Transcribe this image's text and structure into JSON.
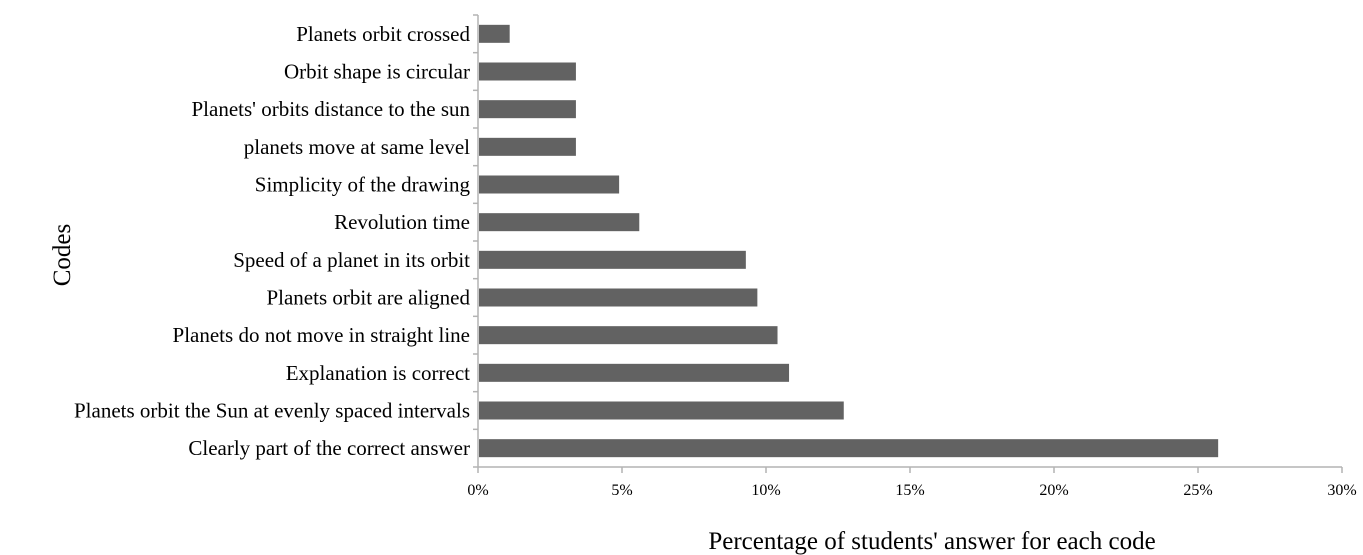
{
  "chart_data": {
    "type": "bar",
    "orientation": "horizontal",
    "categories": [
      "Planets orbit crossed",
      "Orbit shape is circular",
      "Planets' orbits distance to the sun",
      "planets move at same level",
      "Simplicity of the drawing",
      "Revolution time",
      "Speed of a planet in its orbit",
      "Planets orbit are aligned",
      "Planets do not move in straight line",
      "Explanation is correct",
      "Planets orbit the Sun at evenly spaced intervals",
      "Clearly part of the correct answer"
    ],
    "values": [
      1.1,
      3.4,
      3.4,
      3.4,
      4.9,
      5.6,
      9.3,
      9.7,
      10.4,
      10.8,
      12.7,
      25.7
    ],
    "xlabel": "Percentage of students' answer for each code",
    "ylabel": "Codes",
    "xlim": [
      0,
      30
    ],
    "xticks": [
      "0%",
      "5%",
      "10%",
      "15%",
      "20%",
      "25%",
      "30%"
    ],
    "grid": false,
    "legend": "none",
    "bar_color": "#626262"
  }
}
